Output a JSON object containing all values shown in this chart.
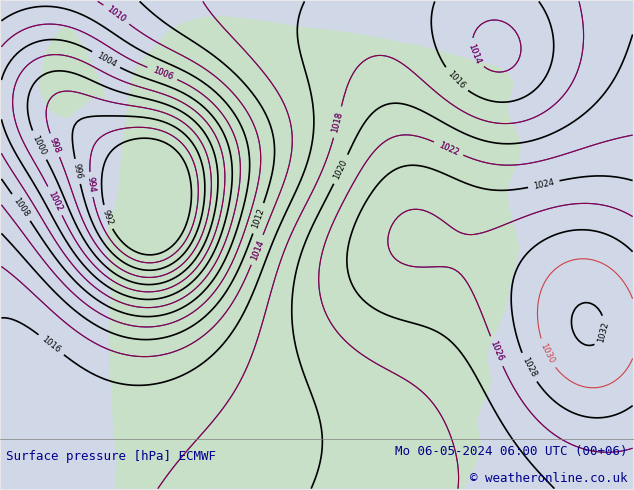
{
  "title_left": "Surface pressure [hPa] ECMWF",
  "title_right": "Mo 06-05-2024 06:00 UTC (00+06)",
  "copyright": "© weatheronline.co.uk",
  "bg_color": "#e8e8e8",
  "map_bg_color": "#d0d8e8",
  "land_color": "#c8e0c8",
  "title_color": "#00008B",
  "title_fontsize": 9,
  "fig_width": 6.34,
  "fig_height": 4.9,
  "dpi": 100
}
